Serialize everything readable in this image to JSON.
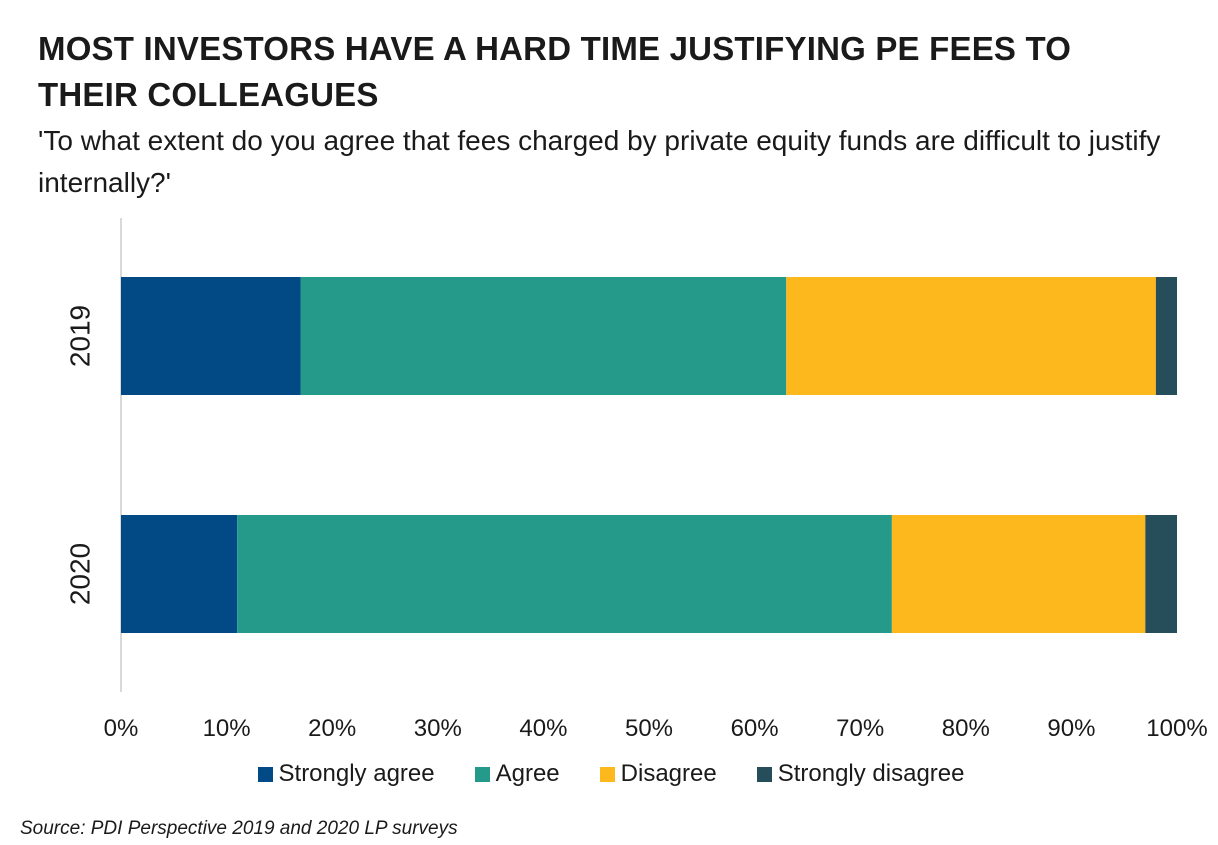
{
  "chart_data": {
    "type": "bar",
    "orientation": "horizontal",
    "stacked": true,
    "title": "MOST INVESTORS HAVE A HARD TIME JUSTIFYING PE FEES TO THEIR COLLEAGUES",
    "subtitle": "'To what extent do you agree that fees charged by private equity funds are difficult to justify internally?'",
    "categories": [
      "2019",
      "2020"
    ],
    "series": [
      {
        "name": "Strongly agree",
        "color": "#024a86",
        "values": [
          17,
          11
        ]
      },
      {
        "name": "Agree",
        "color": "#259a8a",
        "values": [
          46,
          62
        ]
      },
      {
        "name": "Disagree",
        "color": "#fdb81e",
        "values": [
          35,
          24
        ]
      },
      {
        "name": "Strongly disagree",
        "color": "#254e5a",
        "values": [
          2,
          3
        ]
      }
    ],
    "xlim": [
      0,
      100
    ],
    "x_ticks": [
      "0%",
      "10%",
      "20%",
      "30%",
      "40%",
      "50%",
      "60%",
      "70%",
      "80%",
      "90%",
      "100%"
    ],
    "grid": false,
    "legend_position": "bottom",
    "source": "Source: PDI Perspective 2019 and 2020 LP surveys"
  }
}
